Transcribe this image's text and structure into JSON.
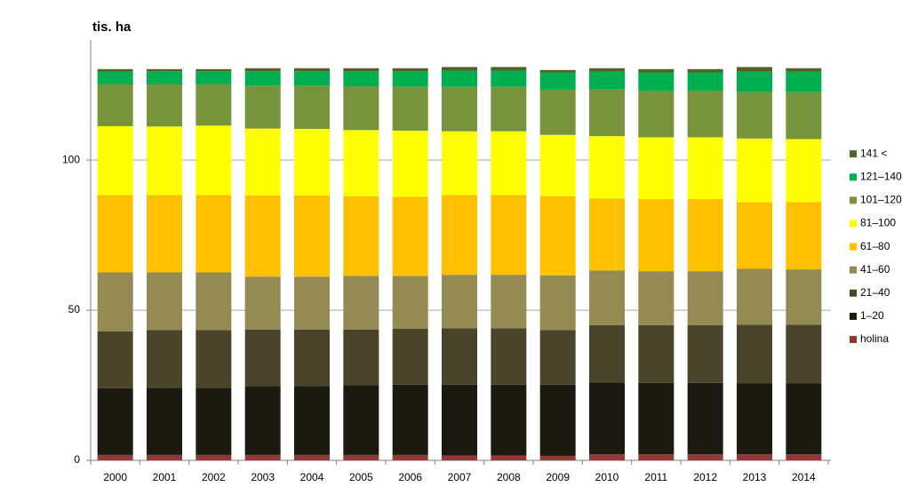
{
  "chart_data": {
    "type": "stacked_bar",
    "title": "tis. ha",
    "categories": [
      "2000",
      "2001",
      "2002",
      "2003",
      "2004",
      "2005",
      "2006",
      "2007",
      "2008",
      "2009",
      "2010",
      "2011",
      "2012",
      "2013",
      "2014"
    ],
    "series": [
      {
        "name": "holina",
        "color": "#953735",
        "values": [
          1.8,
          1.8,
          1.8,
          1.8,
          1.8,
          1.8,
          1.8,
          1.6,
          1.6,
          1.5,
          2.0,
          2.0,
          2.0,
          2.0,
          2.0
        ]
      },
      {
        "name": "1–20",
        "color": "#1c1a10",
        "values": [
          22.2,
          22.4,
          22.4,
          23.0,
          23.0,
          23.2,
          23.4,
          23.6,
          23.6,
          23.7,
          24.0,
          23.8,
          23.8,
          23.6,
          23.6
        ]
      },
      {
        "name": "21–40",
        "color": "#4a452a",
        "values": [
          19.0,
          19.2,
          19.2,
          18.8,
          18.8,
          18.6,
          18.6,
          18.8,
          18.8,
          18.2,
          19.0,
          19.2,
          19.2,
          19.6,
          19.6
        ]
      },
      {
        "name": "41–60",
        "color": "#948a54",
        "values": [
          19.6,
          19.2,
          19.2,
          17.6,
          17.6,
          17.8,
          17.6,
          17.8,
          17.8,
          18.2,
          18.2,
          18.0,
          18.0,
          18.6,
          18.4
        ]
      },
      {
        "name": "61–80",
        "color": "#ffc000",
        "values": [
          25.8,
          25.8,
          25.8,
          27.0,
          27.0,
          26.6,
          26.4,
          26.6,
          26.6,
          26.4,
          24.0,
          24.0,
          24.0,
          22.2,
          22.4
        ]
      },
      {
        "name": "81–100",
        "color": "#ffff00",
        "values": [
          22.9,
          22.8,
          23.1,
          22.3,
          22.2,
          22.0,
          22.0,
          21.2,
          21.2,
          20.4,
          20.8,
          20.6,
          20.6,
          21.2,
          21.0
        ]
      },
      {
        "name": "101–120",
        "color": "#77933c",
        "values": [
          13.9,
          14.0,
          13.7,
          14.3,
          14.4,
          14.6,
          14.6,
          14.8,
          14.8,
          15.0,
          15.5,
          15.4,
          15.4,
          15.4,
          15.6
        ]
      },
      {
        "name": "121–140",
        "color": "#00b050",
        "values": [
          4.2,
          4.4,
          4.4,
          4.8,
          4.8,
          5.0,
          5.2,
          5.4,
          5.4,
          5.8,
          5.9,
          6.2,
          6.2,
          6.8,
          6.8
        ]
      },
      {
        "name": "141 <",
        "color": "#4f6228",
        "values": [
          0.9,
          0.7,
          0.7,
          1.0,
          1.0,
          1.0,
          1.0,
          1.2,
          1.2,
          0.8,
          1.2,
          1.1,
          1.1,
          1.6,
          1.2
        ]
      }
    ],
    "ylim": [
      0,
      140
    ],
    "yticks": [
      0,
      50,
      100
    ],
    "grid": true,
    "legend": "right"
  }
}
